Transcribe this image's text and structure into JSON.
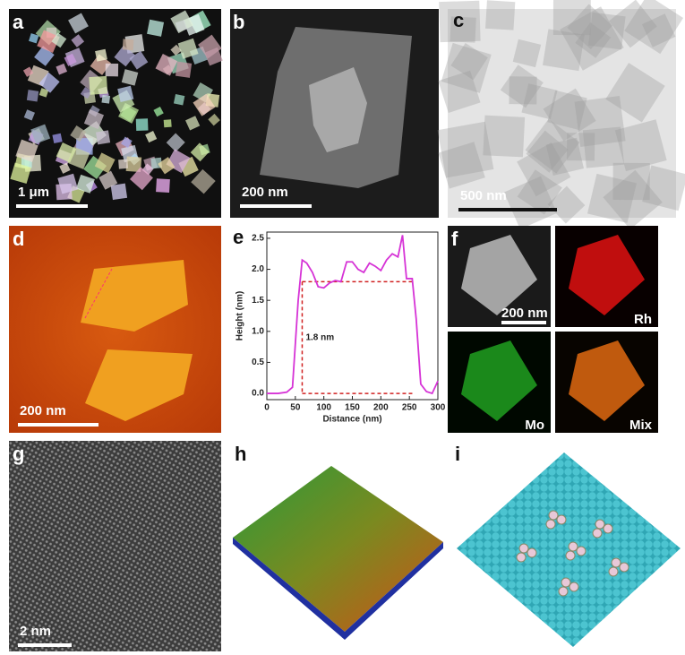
{
  "panels": [
    {
      "label": "a",
      "scale": "1 μm"
    },
    {
      "label": "b",
      "scale": "200 nm"
    },
    {
      "label": "c",
      "scale": "500 nm"
    },
    {
      "label": "d",
      "scale": "200 nm"
    },
    {
      "label": "e"
    },
    {
      "label": "f",
      "scale": "200 nm",
      "maps": [
        "Rh",
        "Mo",
        "Mix"
      ]
    },
    {
      "label": "g",
      "scale": "2 nm"
    },
    {
      "label": "h"
    },
    {
      "label": "i"
    }
  ],
  "chart_data": {
    "type": "line",
    "x_label": "Distance (nm)",
    "y_label": "Height (nm)",
    "annotation": "1.8 nm",
    "x": [
      0,
      20,
      35,
      45,
      55,
      62,
      70,
      80,
      90,
      100,
      110,
      120,
      130,
      140,
      150,
      160,
      170,
      180,
      190,
      200,
      210,
      220,
      230,
      238,
      245,
      255,
      262,
      270,
      280,
      290,
      300
    ],
    "series": [
      {
        "name": "profile",
        "color": "#d633d6",
        "values": [
          0.0,
          0.0,
          0.02,
          0.1,
          1.5,
          2.15,
          2.1,
          1.95,
          1.72,
          1.7,
          1.78,
          1.82,
          1.8,
          2.12,
          2.12,
          2.0,
          1.95,
          2.1,
          2.05,
          1.98,
          2.15,
          2.25,
          2.2,
          2.55,
          1.85,
          1.85,
          1.2,
          0.15,
          0.03,
          0.0,
          0.2
        ]
      }
    ],
    "dashed_lines": [
      1.8,
      0.0
    ],
    "dashed_xrange": [
      62,
      258
    ],
    "dashed_color": "#d02020",
    "xlim": [
      0,
      300
    ],
    "xticks": [
      0,
      50,
      100,
      150,
      200,
      250,
      300
    ],
    "ylim": [
      -0.1,
      2.6
    ],
    "yticks": [
      {
        "value": 0,
        "label": "0.0"
      },
      0.5,
      {
        "value": 1,
        "label": "1.0"
      },
      1.5,
      {
        "value": 2,
        "label": "2.0"
      },
      2.5
    ]
  }
}
